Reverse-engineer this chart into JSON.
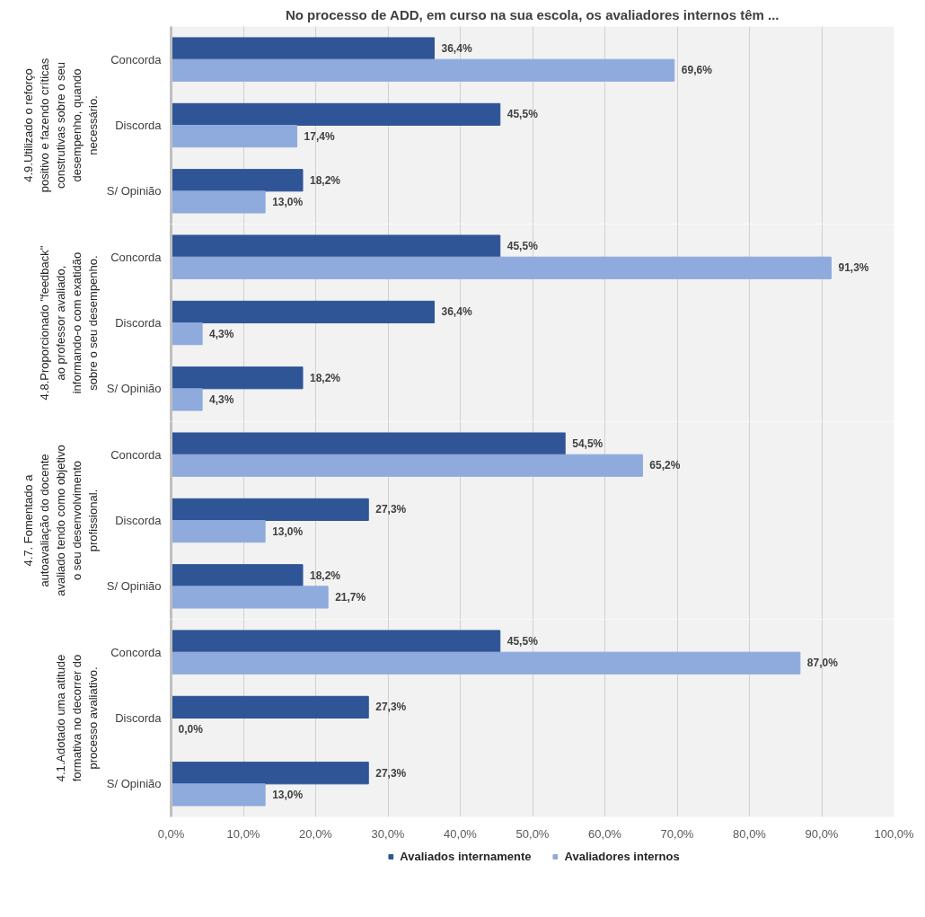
{
  "chart_data": [
    {
      "type": "bar",
      "orientation": "horizontal",
      "title": "No processo de ADD, em curso na sua escola, os avaliadores internos têm ...",
      "ylabel": "4.9.Utilizado o reforço positivo e fazendo críticas construtivas sobre o seu desempenho, quando necessário.",
      "categories": [
        "Concorda",
        "Discorda",
        "S/ Opinião"
      ],
      "series": [
        {
          "color": "#2f5597",
          "values": [
            36.4,
            45.5,
            18.2
          ],
          "value_labels": [
            "36,4%",
            "45,5%",
            "18,2%"
          ]
        },
        {
          "color": "#8faadc",
          "values": [
            69.6,
            17.4,
            13.0
          ],
          "value_labels": [
            "69,6%",
            "17,4%",
            "13,0%"
          ]
        }
      ],
      "xlim": [
        0,
        100
      ],
      "xticks": [
        {
          "value": 0,
          "label": null
        },
        {
          "value": 10,
          "label": null
        },
        {
          "value": 20,
          "label": null
        },
        {
          "value": 30,
          "label": null
        },
        {
          "value": 40,
          "label": null
        },
        {
          "value": 50,
          "label": null
        },
        {
          "value": 60,
          "label": null
        },
        {
          "value": 70,
          "label": null
        },
        {
          "value": 80,
          "label": null
        },
        {
          "value": 90,
          "label": null
        },
        {
          "value": 100,
          "label": null
        }
      ],
      "grid": "x",
      "tick_labels": "y"
    },
    {
      "type": "bar",
      "orientation": "horizontal",
      "ylabel": "4.8.Proporcionado \"feedback\" ao professor avaliado, informando-o com exatidão sobre o seu desempenho.",
      "categories": [
        "Concorda",
        "Discorda",
        "S/ Opinião"
      ],
      "series": [
        {
          "color": "#2f5597",
          "values": [
            45.5,
            36.4,
            18.2
          ],
          "value_labels": [
            "45,5%",
            "36,4%",
            "18,2%"
          ]
        },
        {
          "color": "#8faadc",
          "values": [
            91.3,
            4.3,
            4.3
          ],
          "value_labels": [
            "91,3%",
            "4,3%",
            "4,3%"
          ]
        }
      ],
      "xlim": [
        0,
        100
      ],
      "xticks": [
        {
          "value": 0,
          "label": null
        },
        {
          "value": 10,
          "label": null
        },
        {
          "value": 20,
          "label": null
        },
        {
          "value": 30,
          "label": null
        },
        {
          "value": 40,
          "label": null
        },
        {
          "value": 50,
          "label": null
        },
        {
          "value": 60,
          "label": null
        },
        {
          "value": 70,
          "label": null
        },
        {
          "value": 80,
          "label": null
        },
        {
          "value": 90,
          "label": null
        },
        {
          "value": 100,
          "label": null
        }
      ],
      "grid": "x",
      "tick_labels": "y"
    },
    {
      "type": "bar",
      "orientation": "horizontal",
      "ylabel": "4.7. Fomentado a autoavaliação do docente avaliado tendo como objetivo o seu desenvolvimento profissional.",
      "categories": [
        "Concorda",
        "Discorda",
        "S/ Opinião"
      ],
      "series": [
        {
          "color": "#2f5597",
          "values": [
            54.5,
            27.3,
            18.2
          ],
          "value_labels": [
            "54,5%",
            "27,3%",
            "18,2%"
          ]
        },
        {
          "color": "#8faadc",
          "values": [
            65.2,
            13.0,
            21.7
          ],
          "value_labels": [
            "65,2%",
            "13,0%",
            "21,7%"
          ]
        }
      ],
      "xlim": [
        0,
        100
      ],
      "xticks": [
        {
          "value": 0,
          "label": null
        },
        {
          "value": 10,
          "label": null
        },
        {
          "value": 20,
          "label": null
        },
        {
          "value": 30,
          "label": null
        },
        {
          "value": 40,
          "label": null
        },
        {
          "value": 50,
          "label": null
        },
        {
          "value": 60,
          "label": null
        },
        {
          "value": 70,
          "label": null
        },
        {
          "value": 80,
          "label": null
        },
        {
          "value": 90,
          "label": null
        },
        {
          "value": 100,
          "label": null
        }
      ],
      "grid": "x",
      "tick_labels": "y"
    },
    {
      "type": "bar",
      "orientation": "horizontal",
      "ylabel": "4.1.Adotado uma atitude formativa no decorrer do processo avaliativo.",
      "categories": [
        "Concorda",
        "Discorda",
        "S/ Opinião"
      ],
      "series": [
        {
          "name": "Avaliados internamente",
          "color": "#2f5597",
          "values": [
            45.5,
            27.3,
            27.3
          ],
          "value_labels": [
            "45,5%",
            "27,3%",
            "27,3%"
          ]
        },
        {
          "name": "Avaliadores internos",
          "color": "#8faadc",
          "values": [
            87.0,
            0.0,
            13.0
          ],
          "value_labels": [
            "87,0%",
            "0,0%",
            "13,0%"
          ]
        }
      ],
      "xlim": [
        0,
        100
      ],
      "xticks": [
        {
          "value": 0,
          "label": "0,0%"
        },
        {
          "value": 10,
          "label": "10,0%"
        },
        {
          "value": 20,
          "label": "20,0%"
        },
        {
          "value": 30,
          "label": "30,0%"
        },
        {
          "value": 40,
          "label": "40,0%"
        },
        {
          "value": 50,
          "label": "50,0%"
        },
        {
          "value": 60,
          "label": "60,0%"
        },
        {
          "value": 70,
          "label": "70,0%"
        },
        {
          "value": 80,
          "label": "80,0%"
        },
        {
          "value": 90,
          "label": "90,0%"
        },
        {
          "value": 100,
          "label": "100,0%"
        }
      ],
      "grid": "x",
      "legend": "bottom"
    }
  ]
}
